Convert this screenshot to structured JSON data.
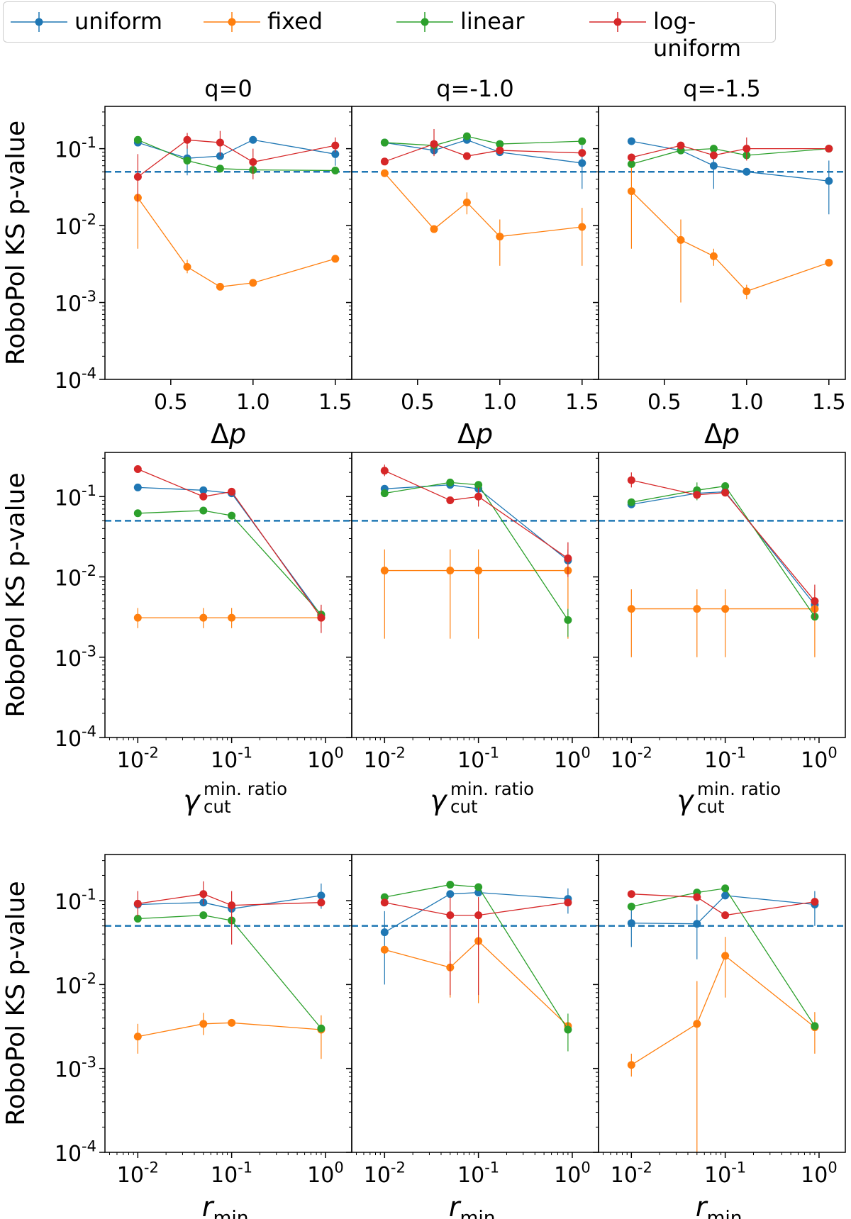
{
  "legend": {
    "items": [
      {
        "label": "uniform",
        "color": "#1f77b4"
      },
      {
        "label": "fixed",
        "color": "#ff7f0e"
      },
      {
        "label": "linear",
        "color": "#2ca02c"
      },
      {
        "label": "log-uniform",
        "color": "#d62728"
      }
    ]
  },
  "ylabel": "RoboPol KS p-value",
  "ylim_log10": [
    -4,
    -0.45
  ],
  "y_tick_labels": [
    "10^{-1}",
    "10^{-2}",
    "10^{-3}",
    "10^{-4}"
  ],
  "threshold": {
    "value": 0.05,
    "color": "#1f77b4",
    "style": "dashed"
  },
  "rows": [
    {
      "xlabel": "Δp",
      "xscale": "linear",
      "xlim": [
        0.1,
        1.6
      ],
      "x_ticks": [
        0.5,
        1.0,
        1.5
      ],
      "x_tick_labels": [
        "0.5",
        "1.0",
        "1.5"
      ],
      "x": [
        0.3,
        0.6,
        0.8,
        1.0,
        1.5
      ],
      "panels": [
        {
          "title": "q=0",
          "series": [
            {
              "name": "uniform",
              "values": [
                0.12,
                0.075,
                0.08,
                0.13,
                0.085
              ],
              "err": [
                null,
                [
                  0.045,
                  0.11
                ],
                null,
                null,
                [
                  0.06,
                  0.1
                ]
              ]
            },
            {
              "name": "fixed",
              "values": [
                0.023,
                0.0029,
                0.0016,
                0.0018,
                0.0037
              ],
              "err": [
                [
                  0.005,
                  0.05
                ],
                [
                  0.0024,
                  0.0036
                ],
                null,
                null,
                null
              ]
            },
            {
              "name": "linear",
              "values": [
                0.13,
                0.07,
                0.055,
                0.053,
                0.052
              ],
              "err": [
                null,
                null,
                null,
                null,
                null
              ]
            },
            {
              "name": "log-uniform",
              "values": [
                0.043,
                0.13,
                0.12,
                0.067,
                0.11
              ],
              "err": [
                [
                  0.02,
                  0.085
                ],
                [
                  0.1,
                  0.16
                ],
                [
                  0.08,
                  0.17
                ],
                [
                  0.04,
                  0.1
                ],
                [
                  0.09,
                  0.14
                ]
              ]
            }
          ]
        },
        {
          "title": "q=-1.0",
          "series": [
            {
              "name": "uniform",
              "values": [
                0.12,
                0.095,
                0.13,
                0.09,
                0.065
              ],
              "err": [
                null,
                null,
                null,
                null,
                [
                  0.03,
                  0.11
                ]
              ]
            },
            {
              "name": "fixed",
              "values": [
                0.048,
                0.009,
                0.02,
                0.0072,
                0.0096
              ],
              "err": [
                null,
                null,
                [
                  0.014,
                  0.027
                ],
                [
                  0.003,
                  0.012
                ],
                [
                  0.003,
                  0.017
                ]
              ]
            },
            {
              "name": "linear",
              "values": [
                0.12,
                0.11,
                0.145,
                0.115,
                0.125
              ],
              "err": [
                null,
                null,
                null,
                null,
                null
              ]
            },
            {
              "name": "log-uniform",
              "values": [
                0.068,
                0.115,
                0.08,
                0.095,
                0.088
              ],
              "err": [
                null,
                [
                  0.08,
                  0.18
                ],
                null,
                null,
                null
              ]
            }
          ]
        },
        {
          "title": "q=-1.5",
          "series": [
            {
              "name": "uniform",
              "values": [
                0.125,
                0.095,
                0.06,
                0.05,
                0.038
              ],
              "err": [
                null,
                null,
                [
                  0.03,
                  0.085
                ],
                null,
                [
                  0.014,
                  0.07
                ]
              ]
            },
            {
              "name": "fixed",
              "values": [
                0.028,
                0.0065,
                0.004,
                0.0014,
                0.0033
              ],
              "err": [
                [
                  0.005,
                  0.06
                ],
                [
                  0.001,
                  0.012
                ],
                [
                  0.003,
                  0.005
                ],
                [
                  0.0011,
                  0.0017
                ],
                null
              ]
            },
            {
              "name": "linear",
              "values": [
                0.063,
                0.095,
                0.1,
                0.082,
                0.1
              ],
              "err": [
                null,
                null,
                null,
                null,
                null
              ]
            },
            {
              "name": "log-uniform",
              "values": [
                0.077,
                0.11,
                0.082,
                0.1,
                0.1
              ],
              "err": [
                null,
                null,
                null,
                [
                  0.07,
                  0.14
                ],
                null
              ]
            }
          ]
        }
      ]
    },
    {
      "xlabel": "γ_cut^{min. ratio}",
      "xscale": "log",
      "xlim_log10": [
        -2.35,
        0.28
      ],
      "x_ticks": [
        0.01,
        0.1,
        1
      ],
      "x_tick_labels": [
        "10^{-2}",
        "10^{-1}",
        "10^{0}"
      ],
      "x": [
        0.01,
        0.05,
        0.1,
        0.9
      ],
      "panels": [
        {
          "title": "",
          "series": [
            {
              "name": "uniform",
              "values": [
                0.13,
                0.12,
                0.11,
                0.0033
              ],
              "err": [
                null,
                null,
                null,
                null
              ]
            },
            {
              "name": "fixed",
              "values": [
                0.0031,
                0.0031,
                0.0031,
                0.0031
              ],
              "err": [
                [
                  0.0023,
                  0.0041
                ],
                [
                  0.0023,
                  0.0041
                ],
                [
                  0.0023,
                  0.0041
                ],
                [
                  0.0023,
                  0.0041
                ]
              ]
            },
            {
              "name": "linear",
              "values": [
                0.062,
                0.067,
                0.058,
                0.0034
              ],
              "err": [
                null,
                null,
                null,
                null
              ]
            },
            {
              "name": "log-uniform",
              "values": [
                0.22,
                0.1,
                0.115,
                0.0031
              ],
              "err": [
                null,
                null,
                null,
                [
                  0.002,
                  0.0045
                ]
              ]
            }
          ]
        },
        {
          "title": "",
          "series": [
            {
              "name": "uniform",
              "values": [
                0.125,
                0.14,
                0.125,
                0.016
              ],
              "err": [
                null,
                null,
                null,
                null
              ]
            },
            {
              "name": "fixed",
              "values": [
                0.012,
                0.012,
                0.012,
                0.012
              ],
              "err": [
                [
                  0.0017,
                  0.022
                ],
                [
                  0.0017,
                  0.022
                ],
                [
                  0.0017,
                  0.022
                ],
                [
                  0.0017,
                  0.022
                ]
              ]
            },
            {
              "name": "linear",
              "values": [
                0.11,
                0.15,
                0.14,
                0.0029
              ],
              "err": [
                null,
                null,
                null,
                [
                  0.0018,
                  0.004
                ]
              ]
            },
            {
              "name": "log-uniform",
              "values": [
                0.21,
                0.09,
                0.1,
                0.017
              ],
              "err": [
                [
                  0.18,
                  0.25
                ],
                null,
                [
                  0.075,
                  0.13
                ],
                [
                  0.01,
                  0.027
                ]
              ]
            }
          ]
        },
        {
          "title": "",
          "series": [
            {
              "name": "uniform",
              "values": [
                0.08,
                0.11,
                0.115,
                0.0045
              ],
              "err": [
                null,
                null,
                null,
                null
              ]
            },
            {
              "name": "fixed",
              "values": [
                0.004,
                0.004,
                0.004,
                0.004
              ],
              "err": [
                [
                  0.001,
                  0.007
                ],
                [
                  0.001,
                  0.007
                ],
                [
                  0.001,
                  0.007
                ],
                [
                  0.001,
                  0.007
                ]
              ]
            },
            {
              "name": "linear",
              "values": [
                0.085,
                0.12,
                0.135,
                0.0032
              ],
              "err": [
                null,
                [
                  0.09,
                  0.15
                ],
                null,
                null
              ]
            },
            {
              "name": "log-uniform",
              "values": [
                0.16,
                0.105,
                0.112,
                0.005
              ],
              "err": [
                [
                  0.13,
                  0.2
                ],
                null,
                null,
                [
                  0.003,
                  0.008
                ]
              ]
            }
          ]
        }
      ]
    },
    {
      "xlabel": "r_{min.}",
      "xscale": "log",
      "xlim_log10": [
        -2.35,
        0.28
      ],
      "x_ticks": [
        0.01,
        0.1,
        1
      ],
      "x_tick_labels": [
        "10^{-2}",
        "10^{-1}",
        "10^{0}"
      ],
      "x": [
        0.01,
        0.05,
        0.1,
        0.9
      ],
      "panels": [
        {
          "title": "",
          "series": [
            {
              "name": "uniform",
              "values": [
                0.09,
                0.095,
                0.08,
                0.115
              ],
              "err": [
                null,
                null,
                null,
                [
                  0.08,
                  0.16
                ]
              ]
            },
            {
              "name": "fixed",
              "values": [
                0.0024,
                0.0034,
                0.0035,
                0.0029
              ],
              "err": [
                [
                  0.0015,
                  0.0034
                ],
                [
                  0.0025,
                  0.0046
                ],
                null,
                [
                  0.0013,
                  0.0043
                ]
              ]
            },
            {
              "name": "linear",
              "values": [
                0.061,
                0.067,
                0.058,
                0.003
              ],
              "err": [
                null,
                null,
                null,
                null
              ]
            },
            {
              "name": "log-uniform",
              "values": [
                0.092,
                0.12,
                0.088,
                0.095
              ],
              "err": [
                [
                  0.065,
                  0.13
                ],
                [
                  0.09,
                  0.17
                ],
                [
                  0.03,
                  0.13
                ],
                null
              ]
            }
          ]
        },
        {
          "title": "",
          "series": [
            {
              "name": "uniform",
              "values": [
                0.042,
                0.12,
                0.125,
                0.105
              ],
              "err": [
                [
                  0.01,
                  0.075
                ],
                null,
                null,
                [
                  0.07,
                  0.14
                ]
              ]
            },
            {
              "name": "fixed",
              "values": [
                0.026,
                0.016,
                0.033,
                0.0032
              ],
              "err": [
                null,
                [
                  0.007,
                  0.025
                ],
                [
                  0.006,
                  0.045
                ],
                null
              ]
            },
            {
              "name": "linear",
              "values": [
                0.11,
                0.155,
                0.145,
                0.0029
              ],
              "err": [
                null,
                null,
                null,
                [
                  0.0016,
                  0.0045
                ]
              ]
            },
            {
              "name": "log-uniform",
              "values": [
                0.095,
                0.067,
                0.067,
                0.095
              ],
              "err": [
                null,
                [
                  0.0075,
                  0.11
                ],
                [
                  0.0075,
                  0.11
                ],
                null
              ]
            }
          ]
        },
        {
          "title": "",
          "series": [
            {
              "name": "uniform",
              "values": [
                0.054,
                0.053,
                0.115,
                0.09
              ],
              "err": [
                [
                  0.028,
                  0.08
                ],
                [
                  0.02,
                  0.09
                ],
                null,
                [
                  0.05,
                  0.13
                ]
              ]
            },
            {
              "name": "fixed",
              "values": [
                0.0011,
                0.0034,
                0.022,
                0.0031
              ],
              "err": [
                [
                  0.0008,
                  0.0015
                ],
                [
                  0.0001,
                  0.011
                ],
                [
                  0.007,
                  0.037
                ],
                [
                  0.0015,
                  0.0047
                ]
              ]
            },
            {
              "name": "linear",
              "values": [
                0.085,
                0.125,
                0.14,
                0.0032
              ],
              "err": [
                null,
                null,
                null,
                null
              ]
            },
            {
              "name": "log-uniform",
              "values": [
                0.12,
                0.11,
                0.067,
                0.097
              ],
              "err": [
                null,
                null,
                null,
                null
              ]
            }
          ]
        }
      ]
    }
  ]
}
